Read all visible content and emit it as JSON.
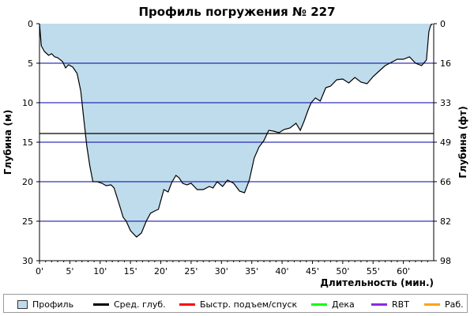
{
  "chart_data": {
    "type": "area",
    "title": "Профиль погружения № 227",
    "xlabel": "Длительность (мин.)",
    "ylabel_left": "Глубина (м)",
    "ylabel_right": "Глубина (фт)",
    "xlim": [
      0,
      65
    ],
    "ylim": [
      0,
      30
    ],
    "y_inverted": true,
    "x_ticks": [
      0,
      5,
      10,
      15,
      20,
      25,
      30,
      35,
      40,
      45,
      50,
      55,
      60
    ],
    "x_tick_labels": [
      "0'",
      "5'",
      "10'",
      "15'",
      "20'",
      "25'",
      "30'",
      "35'",
      "40'",
      "45'",
      "50'",
      "55'",
      "60'"
    ],
    "y_ticks_left": [
      0,
      5,
      10,
      15,
      20,
      25,
      30
    ],
    "y_tick_labels_left": [
      "0",
      "5",
      "10",
      "15",
      "20",
      "25",
      "30"
    ],
    "y_tick_labels_right": [
      "0",
      "16",
      "33",
      "49",
      "66",
      "82",
      "98"
    ],
    "grid": "horizontal",
    "avg_depth_m": 13.9,
    "colors": {
      "fill": "#bfdcec",
      "profile_line": "#000000",
      "grid": "#0000aa",
      "avg_depth": "#000000",
      "fast_ascent": "#ff0000",
      "deco": "#00ff00",
      "rbt": "#8a2be2",
      "work": "#ffa500"
    },
    "series": [
      {
        "name": "Профиль",
        "x": [
          0,
          0.3,
          0.8,
          1.5,
          2.0,
          2.5,
          3.0,
          3.8,
          4.3,
          4.8,
          5.5,
          6.2,
          6.8,
          7.3,
          7.8,
          8.3,
          8.8,
          9.5,
          10.3,
          11.0,
          11.8,
          12.3,
          13.0,
          13.8,
          14.3,
          15.0,
          16.0,
          16.8,
          17.6,
          18.3,
          19.0,
          19.6,
          20.5,
          21.2,
          21.8,
          22.5,
          23.0,
          23.6,
          24.3,
          25.0,
          26.0,
          27.0,
          28.0,
          28.6,
          29.3,
          30.2,
          31.0,
          32.0,
          33.0,
          33.8,
          34.6,
          35.4,
          36.2,
          37.0,
          37.8,
          38.6,
          39.5,
          40.3,
          41.3,
          42.3,
          43.0,
          43.6,
          44.3,
          44.8,
          45.5,
          46.3,
          47.2,
          48.0,
          49.0,
          50.0,
          51.0,
          52.0,
          53.0,
          54.0,
          55.0,
          56.0,
          57.0,
          58.0,
          59.0,
          60.0,
          61.0,
          62.0,
          63.0,
          63.8,
          64.2,
          64.5,
          64.8
        ],
        "y": [
          0,
          2.8,
          3.5,
          4.0,
          3.8,
          4.2,
          4.3,
          4.8,
          5.6,
          5.2,
          5.5,
          6.3,
          8.5,
          12.0,
          15.5,
          18.0,
          20.0,
          20.0,
          20.2,
          20.5,
          20.4,
          20.8,
          22.5,
          24.5,
          25.0,
          26.2,
          27.0,
          26.5,
          25.0,
          24.0,
          23.7,
          23.5,
          21.0,
          21.3,
          20.1,
          19.2,
          19.5,
          20.2,
          20.4,
          20.2,
          21.0,
          21.0,
          20.6,
          20.8,
          20.0,
          20.6,
          19.8,
          20.2,
          21.2,
          21.4,
          19.8,
          17.0,
          15.6,
          14.8,
          13.5,
          13.6,
          13.8,
          13.4,
          13.2,
          12.6,
          13.5,
          12.4,
          10.9,
          10.0,
          9.4,
          9.8,
          8.1,
          7.9,
          7.1,
          7.0,
          7.5,
          6.8,
          7.4,
          7.6,
          6.7,
          6.0,
          5.3,
          4.9,
          4.5,
          4.5,
          4.2,
          5.0,
          5.3,
          4.6,
          1.0,
          0.2,
          0
        ]
      }
    ],
    "legend": {
      "position": "bottom",
      "items": [
        {
          "label": "Профиль",
          "kind": "box",
          "color": "#bfdcec"
        },
        {
          "label": "Сред. глуб.",
          "kind": "line",
          "color": "#000000"
        },
        {
          "label": "Быстр. подъем/спуск",
          "kind": "line",
          "color": "#ff0000"
        },
        {
          "label": "Дека",
          "kind": "line",
          "color": "#00ff00"
        },
        {
          "label": "RBT",
          "kind": "line",
          "color": "#8a2be2"
        },
        {
          "label": "Раб.",
          "kind": "line",
          "color": "#ffa500"
        }
      ]
    }
  }
}
